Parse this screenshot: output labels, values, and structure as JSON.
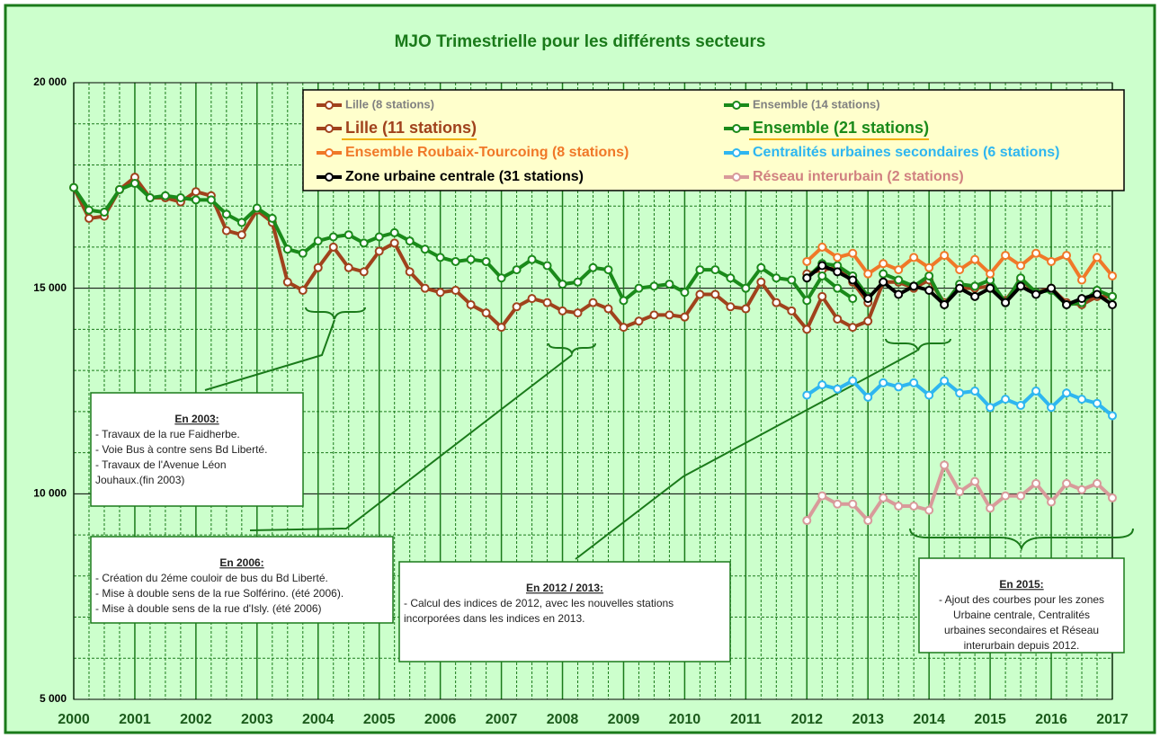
{
  "chart_data": {
    "type": "line",
    "title": "MJO Trimestrielle pour les différents secteurs",
    "xlim": [
      2000,
      2017
    ],
    "xticks": [
      2000,
      2001,
      2002,
      2003,
      2004,
      2005,
      2006,
      2007,
      2008,
      2009,
      2010,
      2011,
      2012,
      2013,
      2014,
      2015,
      2016,
      2017
    ],
    "ylim": [
      5000,
      20000
    ],
    "yticks": [
      {
        "value": 5000,
        "label": "5 000"
      },
      {
        "value": 10000,
        "label": "10 000"
      },
      {
        "value": 15000,
        "label": "15 000"
      },
      {
        "value": 20000,
        "label": "20 000"
      }
    ],
    "grid": true,
    "series": [
      {
        "name": "Lille (8 stations)",
        "color": "#a0421c",
        "x": [
          2012,
          2012.25,
          2012.5,
          2012.75,
          2013
        ],
        "values": [
          15350,
          15450,
          15500,
          15150,
          14650
        ]
      },
      {
        "name": "Ensemble (14 stations)",
        "color": "#1a8a1a",
        "x": [
          2012,
          2012.25,
          2012.5,
          2012.75,
          2013
        ],
        "values": [
          15250,
          15600,
          15550,
          15300,
          14800
        ]
      },
      {
        "name": "Lille (11 stations)",
        "color": "#a0421c",
        "x": [
          2000,
          2000.25,
          2000.5,
          2000.75,
          2001,
          2001.25,
          2001.5,
          2001.75,
          2002,
          2002.25,
          2002.5,
          2002.75,
          2003,
          2003.25,
          2003.5,
          2003.75,
          2004,
          2004.25,
          2004.5,
          2004.75,
          2005,
          2005.25,
          2005.5,
          2005.75,
          2006,
          2006.25,
          2006.5,
          2006.75,
          2007,
          2007.25,
          2007.5,
          2007.75,
          2008,
          2008.25,
          2008.5,
          2008.75,
          2009,
          2009.25,
          2009.5,
          2009.75,
          2010,
          2010.25,
          2010.5,
          2010.75,
          2011,
          2011.25,
          2011.5,
          2011.75,
          2012,
          2012.25,
          2012.5,
          2012.75,
          2013,
          2013.25,
          2013.5,
          2013.75,
          2014,
          2014.25,
          2014.5,
          2014.75,
          2015,
          2015.25,
          2015.5,
          2015.75,
          2016,
          2016.25,
          2016.5,
          2016.75,
          2017
        ],
        "values": [
          17450,
          16700,
          16750,
          17400,
          17700,
          17200,
          17200,
          17100,
          17350,
          17250,
          16400,
          16300,
          16900,
          16600,
          15150,
          14950,
          15500,
          16000,
          15500,
          15400,
          15900,
          16100,
          15400,
          15000,
          14900,
          14950,
          14600,
          14400,
          14050,
          14550,
          14750,
          14650,
          14450,
          14400,
          14650,
          14500,
          14050,
          14200,
          14350,
          14350,
          14300,
          14850,
          14850,
          14550,
          14500,
          15150,
          14650,
          14450,
          14000,
          14800,
          14250,
          14050,
          14200,
          15150,
          15150,
          15000,
          15200,
          14650,
          15000,
          15000,
          15050,
          14700,
          15200,
          14900,
          15000,
          14650,
          14600,
          14800,
          14800
        ]
      },
      {
        "name": "Ensemble (21 stations)",
        "color": "#1a8a1a",
        "x": [
          2000,
          2000.25,
          2000.5,
          2000.75,
          2001,
          2001.25,
          2001.5,
          2001.75,
          2002,
          2002.25,
          2002.5,
          2002.75,
          2003,
          2003.25,
          2003.5,
          2003.75,
          2004,
          2004.25,
          2004.5,
          2004.75,
          2005,
          2005.25,
          2005.5,
          2005.75,
          2006,
          2006.25,
          2006.5,
          2006.75,
          2007,
          2007.25,
          2007.5,
          2007.75,
          2008,
          2008.25,
          2008.5,
          2008.75,
          2009,
          2009.25,
          2009.5,
          2009.75,
          2010,
          2010.25,
          2010.5,
          2010.75,
          2011,
          2011.25,
          2011.5,
          2011.75,
          2012,
          2012.25,
          2012.5,
          2012.75,
          2013,
          2013.25,
          2013.5,
          2013.75,
          2014,
          2014.25,
          2014.5,
          2014.75,
          2015,
          2015.25,
          2015.5,
          2015.75,
          2016,
          2016.25,
          2016.5,
          2016.75,
          2017
        ],
        "values": [
          17450,
          16900,
          16850,
          17400,
          17550,
          17200,
          17250,
          17200,
          17150,
          17150,
          16800,
          16600,
          16950,
          16700,
          15950,
          15850,
          16150,
          16250,
          16300,
          16100,
          16250,
          16350,
          16150,
          15950,
          15750,
          15650,
          15700,
          15650,
          15250,
          15450,
          15700,
          15550,
          15100,
          15150,
          15500,
          15450,
          14700,
          15000,
          15050,
          15100,
          14900,
          15450,
          15450,
          15250,
          15000,
          15500,
          15250,
          15200,
          14700,
          15300,
          15000,
          14750,
          null,
          15350,
          15200,
          15050,
          15300,
          14600,
          15100,
          15050,
          15200,
          14650,
          15250,
          14900,
          14950,
          14600,
          14650,
          14950,
          14800
        ]
      },
      {
        "name": "Ensemble Roubaix-Tourcoing (8 stations)",
        "color": "#f07828",
        "x": [
          2012,
          2012.25,
          2012.5,
          2012.75,
          2013,
          2013.25,
          2013.5,
          2013.75,
          2014,
          2014.25,
          2014.5,
          2014.75,
          2015,
          2015.25,
          2015.5,
          2015.75,
          2016,
          2016.25,
          2016.5,
          2016.75,
          2017
        ],
        "values": [
          15650,
          16000,
          15750,
          15850,
          15350,
          15600,
          15450,
          15750,
          15500,
          15800,
          15450,
          15700,
          15350,
          15800,
          15550,
          15850,
          15650,
          15800,
          15200,
          15750,
          15300
        ]
      },
      {
        "name": "Centralités urbaines secondaires (6 stations)",
        "color": "#2eb6f0",
        "x": [
          2012,
          2012.25,
          2012.5,
          2012.75,
          2013,
          2013.25,
          2013.5,
          2013.75,
          2014,
          2014.25,
          2014.5,
          2014.75,
          2015,
          2015.25,
          2015.5,
          2015.75,
          2016,
          2016.25,
          2016.5,
          2016.75,
          2017
        ],
        "values": [
          12400,
          12650,
          12550,
          12750,
          12350,
          12700,
          12600,
          12700,
          12400,
          12750,
          12450,
          12500,
          12100,
          12300,
          12150,
          12500,
          12100,
          12450,
          12300,
          12200,
          11900
        ]
      },
      {
        "name": "Zone urbaine centrale (31 stations)",
        "color": "#000000",
        "x": [
          2012,
          2012.25,
          2012.5,
          2012.75,
          2013,
          2013.25,
          2013.5,
          2013.75,
          2014,
          2014.25,
          2014.5,
          2014.75,
          2015,
          2015.25,
          2015.5,
          2015.75,
          2016,
          2016.25,
          2016.5,
          2016.75,
          2017
        ],
        "values": [
          15250,
          15550,
          15400,
          15200,
          14750,
          15150,
          14850,
          15050,
          14950,
          14600,
          15000,
          14800,
          15000,
          14650,
          15050,
          14850,
          15000,
          14600,
          14750,
          14850,
          14600
        ]
      },
      {
        "name": "Réseau interurbain (2 stations)",
        "color": "#d89a9a",
        "x": [
          2012,
          2012.25,
          2012.5,
          2012.75,
          2013,
          2013.25,
          2013.5,
          2013.75,
          2014,
          2014.25,
          2014.5,
          2014.75,
          2015,
          2015.25,
          2015.5,
          2015.75,
          2016,
          2016.25,
          2016.5,
          2016.75,
          2017
        ],
        "values": [
          9350,
          9950,
          9750,
          9750,
          9350,
          9900,
          9700,
          9700,
          9600,
          10700,
          10050,
          10300,
          9650,
          9950,
          9950,
          10250,
          9800,
          10250,
          10100,
          10250,
          9900
        ]
      }
    ],
    "annotations": [
      {
        "title": "En 2003:",
        "lines": [
          "- Travaux  de la rue Faidherbe.",
          "- Voie Bus à contre sens Bd Liberté.",
          "- Travaux de l'Avenue Léon",
          "Jouhaux.(fin 2003)"
        ]
      },
      {
        "title": "En 2006:",
        "lines": [
          "- Création du 2éme couloir de bus du Bd Liberté.",
          "- Mise à double sens de la rue Solférino. (été 2006).",
          "- Mise à double sens de la rue d'Isly. (été 2006)"
        ]
      },
      {
        "title": "En 2012 / 2013:",
        "lines": [
          "- Calcul des indices de 2012, avec les nouvelles stations",
          "incorporées dans les indices en 2013."
        ]
      },
      {
        "title": "En 2015:",
        "lines": [
          "- Ajout des courbes pour les zones",
          "Urbaine centrale, Centralités",
          "urbaines secondaires et Réseau",
          "interurbain depuis 2012."
        ]
      }
    ]
  }
}
